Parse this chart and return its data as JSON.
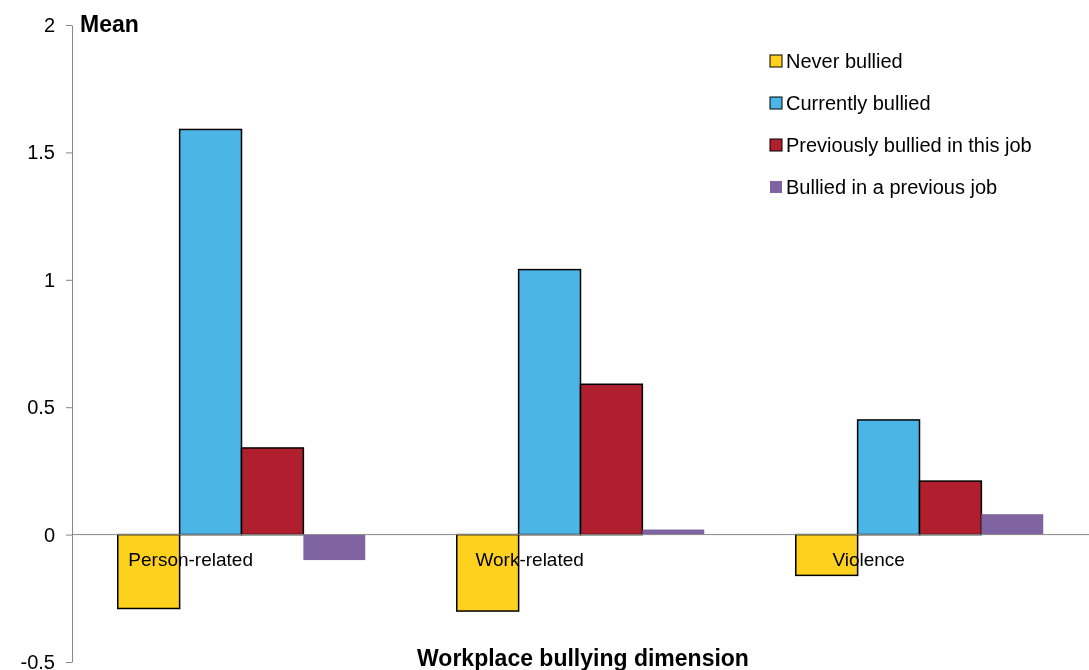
{
  "chart_data": {
    "type": "bar",
    "ylabel": "Mean",
    "xlabel": "Workplace bullying dimension",
    "categories": [
      "Person-related",
      "Work-related",
      "Violence"
    ],
    "series": [
      {
        "name": "Never bullied",
        "color": "#fdd11e",
        "values": [
          -0.29,
          -0.3,
          -0.16
        ]
      },
      {
        "name": "Currently bullied",
        "color": "#4bb5e6",
        "values": [
          1.59,
          1.04,
          0.45
        ]
      },
      {
        "name": "Previously bullied in this job",
        "color": "#b01f2e",
        "values": [
          0.34,
          0.59,
          0.21
        ]
      },
      {
        "name": "Bullied in a previous job",
        "color": "#8064a2",
        "values": [
          -0.1,
          0.02,
          0.08
        ]
      }
    ],
    "ylim": [
      -0.5,
      2
    ],
    "yticks": [
      -0.5,
      0,
      0.5,
      1,
      1.5,
      2
    ],
    "grid": false,
    "legend": "top right"
  }
}
